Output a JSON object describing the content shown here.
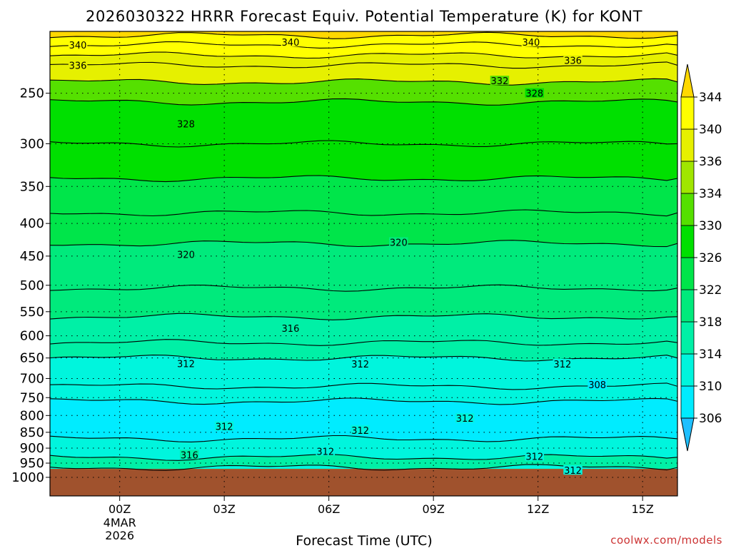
{
  "title": "2026030322 HRRR Forecast Equiv. Potential Temperature (K) for KONT",
  "watermark": "coolwx.com/models",
  "chart_data": {
    "type": "heatmap",
    "title": "2026030322 HRRR Forecast Equiv. Potential Temperature (K) for KONT",
    "xlabel": "Forecast Time (UTC)",
    "ylabel": "",
    "x_ticks": [
      {
        "hour": 0,
        "label": "00Z",
        "sub": [
          "4MAR",
          "2026"
        ]
      },
      {
        "hour": 3,
        "label": "03Z",
        "sub": []
      },
      {
        "hour": 6,
        "label": "06Z",
        "sub": []
      },
      {
        "hour": 9,
        "label": "09Z",
        "sub": []
      },
      {
        "hour": 12,
        "label": "12Z",
        "sub": []
      },
      {
        "hour": 15,
        "label": "15Z",
        "sub": []
      }
    ],
    "xlim": [
      -2,
      16
    ],
    "y_ticks": [
      250,
      300,
      350,
      400,
      450,
      500,
      550,
      600,
      650,
      700,
      750,
      800,
      850,
      900,
      950,
      1000
    ],
    "ylim": [
      200,
      1000
    ],
    "y_scale": "log-pressure",
    "grid": "dotted horizontal lines at pressure ticks; dotted vertical lines at 3-hourly ticks",
    "colorbar": {
      "levels": [
        306,
        310,
        314,
        318,
        322,
        326,
        330,
        334,
        336,
        340,
        344
      ],
      "colors": [
        "#1fbfff",
        "#00ecff",
        "#00f5dd",
        "#00f0a6",
        "#00ea7c",
        "#00e54a",
        "#00e000",
        "#55e000",
        "#a0e600",
        "#e6f000",
        "#ffff00",
        "#ffd800"
      ]
    },
    "isotherm_rows": [
      {
        "pressure": 203,
        "value": 342,
        "label": ""
      },
      {
        "pressure": 210,
        "value": 340,
        "label": "340"
      },
      {
        "pressure": 218,
        "value": 338,
        "label": ""
      },
      {
        "pressure": 226,
        "value": 336,
        "label": "336"
      },
      {
        "pressure": 240,
        "value": 332,
        "label": "332"
      },
      {
        "pressure": 258,
        "value": 328,
        "label": "328"
      },
      {
        "pressure": 300,
        "value": 326,
        "label": ""
      },
      {
        "pressure": 340,
        "value": 324,
        "label": ""
      },
      {
        "pressure": 385,
        "value": 322,
        "label": ""
      },
      {
        "pressure": 430,
        "value": 320,
        "label": "320"
      },
      {
        "pressure": 505,
        "value": 318,
        "label": ""
      },
      {
        "pressure": 560,
        "value": 316,
        "label": "316"
      },
      {
        "pressure": 615,
        "value": 314,
        "label": ""
      },
      {
        "pressure": 650,
        "value": 312,
        "label": "312"
      },
      {
        "pressure": 720,
        "value": 310,
        "label": ""
      },
      {
        "pressure": 760,
        "value": 308,
        "label": "308"
      },
      {
        "pressure": 870,
        "value": 312,
        "label": "312"
      },
      {
        "pressure": 930,
        "value": 316,
        "label": "316"
      },
      {
        "pressure": 965,
        "value": 312,
        "label": "312"
      }
    ],
    "contour_labels": [
      {
        "text": "340",
        "hour": -1.2,
        "pressure": 210
      },
      {
        "text": "340",
        "hour": 4.9,
        "pressure": 208
      },
      {
        "text": "340",
        "hour": 11.8,
        "pressure": 208
      },
      {
        "text": "336",
        "hour": -1.2,
        "pressure": 226
      },
      {
        "text": "336",
        "hour": 13.0,
        "pressure": 222
      },
      {
        "text": "332",
        "hour": 10.9,
        "pressure": 239
      },
      {
        "text": "328",
        "hour": 1.9,
        "pressure": 279
      },
      {
        "text": "328",
        "hour": 11.9,
        "pressure": 250
      },
      {
        "text": "320",
        "hour": 1.9,
        "pressure": 447
      },
      {
        "text": "320",
        "hour": 8.0,
        "pressure": 428
      },
      {
        "text": "316",
        "hour": 4.9,
        "pressure": 584
      },
      {
        "text": "312",
        "hour": 1.9,
        "pressure": 663
      },
      {
        "text": "312",
        "hour": 6.9,
        "pressure": 664
      },
      {
        "text": "312",
        "hour": 12.7,
        "pressure": 664
      },
      {
        "text": "308",
        "hour": 13.7,
        "pressure": 716
      },
      {
        "text": "312",
        "hour": 9.9,
        "pressure": 808
      },
      {
        "text": "312",
        "hour": 3.0,
        "pressure": 832
      },
      {
        "text": "312",
        "hour": 6.9,
        "pressure": 844
      },
      {
        "text": "312",
        "hour": 5.9,
        "pressure": 910
      },
      {
        "text": "316",
        "hour": 2.0,
        "pressure": 922
      },
      {
        "text": "312",
        "hour": 11.9,
        "pressure": 927
      },
      {
        "text": "312",
        "hour": 13.0,
        "pressure": 975
      }
    ],
    "ground_pressure": 970,
    "ground_color": "#a0522d"
  }
}
